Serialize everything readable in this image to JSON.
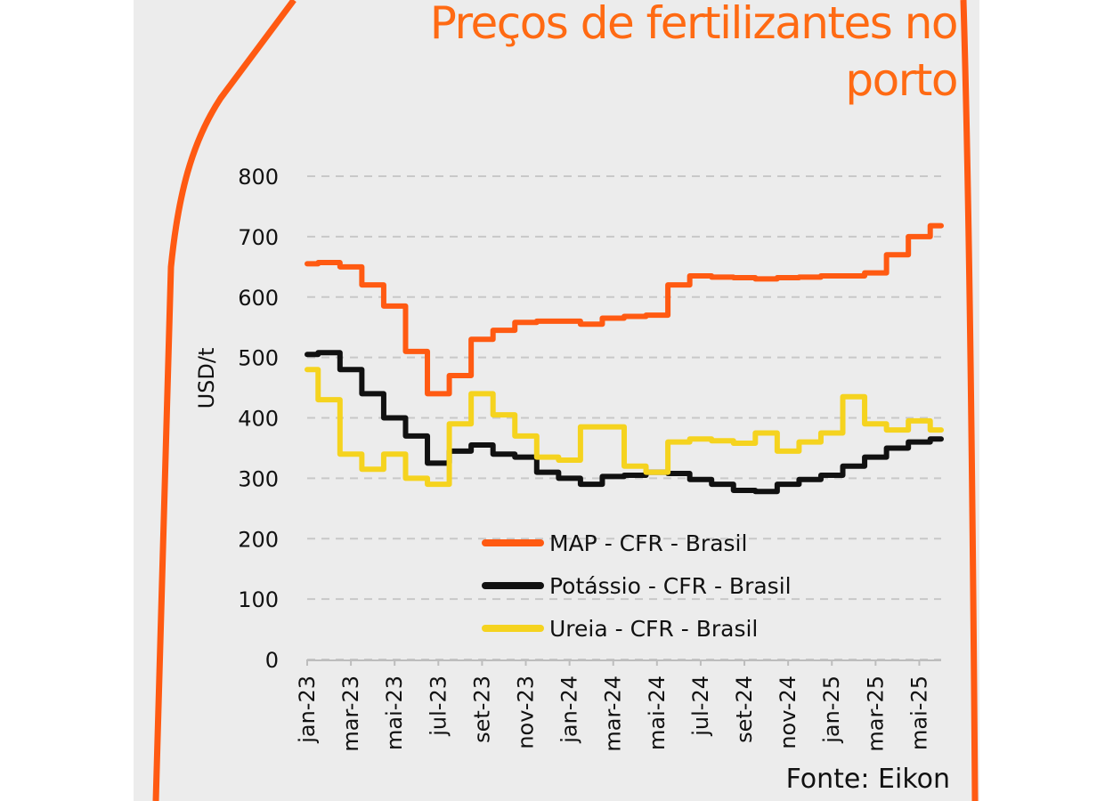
{
  "colors": {
    "accent": "#ff6a13",
    "panel": "#ececec",
    "map": "#ff5a12",
    "potassio": "#111111",
    "ureia": "#f5d31f"
  },
  "header": {
    "title_line1": "Preços de fertilizantes no",
    "title_line2": "porto"
  },
  "source": "Fonte: Eikon",
  "chart_data": {
    "type": "line",
    "ylabel": "USD/t",
    "ylim": [
      0,
      800
    ],
    "yticks": [
      0,
      100,
      200,
      300,
      400,
      500,
      600,
      700,
      800
    ],
    "grid": true,
    "legend_position": "bottom-center",
    "x_labels": [
      "jan-23",
      "mar-23",
      "mai-23",
      "jul-23",
      "set-23",
      "nov-23",
      "jan-24",
      "mar-24",
      "mai-24",
      "jul-24",
      "set-24",
      "nov-24",
      "jan-25",
      "mar-25",
      "mai-25"
    ],
    "x": [
      "jan-23",
      "fev-23",
      "mar-23",
      "abr-23",
      "mai-23",
      "jun-23",
      "jul-23",
      "ago-23",
      "set-23",
      "out-23",
      "nov-23",
      "dez-23",
      "jan-24",
      "fev-24",
      "mar-24",
      "abr-24",
      "mai-24",
      "jun-24",
      "jul-24",
      "ago-24",
      "set-24",
      "out-24",
      "nov-24",
      "dez-24",
      "jan-25",
      "fev-25",
      "mar-25",
      "abr-25",
      "mai-25",
      "jun-25"
    ],
    "series": [
      {
        "name": "MAP - CFR - Brasil",
        "color": "#ff5a12",
        "values": [
          655,
          657,
          650,
          620,
          585,
          510,
          440,
          470,
          530,
          545,
          558,
          560,
          560,
          555,
          565,
          568,
          570,
          620,
          635,
          633,
          632,
          630,
          632,
          633,
          635,
          635,
          640,
          670,
          700,
          718
        ]
      },
      {
        "name": "Potássio - CFR - Brasil",
        "color": "#111111",
        "values": [
          505,
          508,
          480,
          440,
          400,
          370,
          325,
          345,
          355,
          340,
          335,
          310,
          300,
          290,
          303,
          305,
          310,
          308,
          298,
          290,
          280,
          278,
          290,
          298,
          305,
          320,
          335,
          350,
          360,
          365
        ]
      },
      {
        "name": "Ureia - CFR - Brasil",
        "color": "#f5d31f",
        "values": [
          480,
          430,
          340,
          315,
          340,
          300,
          290,
          390,
          440,
          405,
          370,
          335,
          330,
          385,
          385,
          320,
          310,
          360,
          365,
          362,
          358,
          375,
          345,
          360,
          375,
          435,
          390,
          380,
          395,
          380
        ]
      }
    ]
  }
}
